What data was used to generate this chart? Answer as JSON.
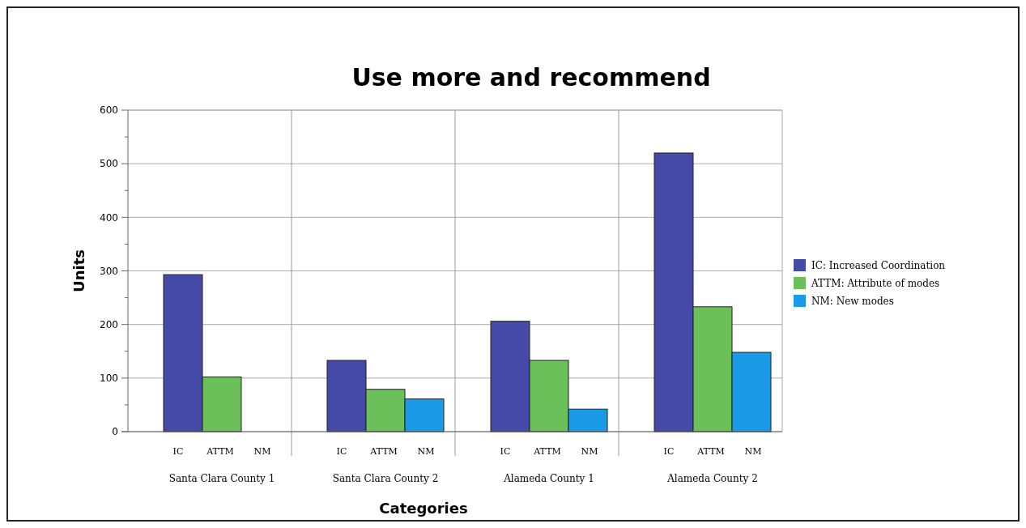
{
  "chart_data": {
    "type": "bar",
    "title": "Use more and recommend",
    "xlabel": "Categories",
    "ylabel": "Units",
    "categories": [
      "Santa Clara County 1",
      "Santa Clara County 2",
      "Alameda  County 1",
      "Alameda County 2"
    ],
    "series": [
      {
        "name": "IC: Increased Coordination",
        "color": "#4549a8",
        "values": [
          293,
          133,
          206,
          520
        ]
      },
      {
        "name": "ATTM: Attribute of modes",
        "color": "#6cc05a",
        "values": [
          102,
          79,
          133,
          233
        ]
      },
      {
        "name": "NM: New modes",
        "color": "#1b9ae8",
        "values": [
          0,
          61,
          42,
          148
        ]
      }
    ],
    "ylim": [
      0,
      600
    ],
    "yticks": [
      0,
      {
        "value": 50,
        "label": null
      },
      100,
      {
        "value": 150,
        "label": null
      },
      200,
      {
        "value": 250,
        "label": null
      },
      300,
      {
        "value": 350,
        "label": null
      },
      400,
      {
        "value": 450,
        "label": null
      },
      500,
      {
        "value": 550,
        "label": null
      },
      600
    ],
    "grid": true,
    "legend": "right",
    "annotations": [
      "IC",
      "ATTM",
      "NM",
      "IC",
      "ATTM",
      "NM",
      "IC",
      "ATTM",
      "NM",
      "IC",
      "ATTM",
      "NM"
    ]
  }
}
